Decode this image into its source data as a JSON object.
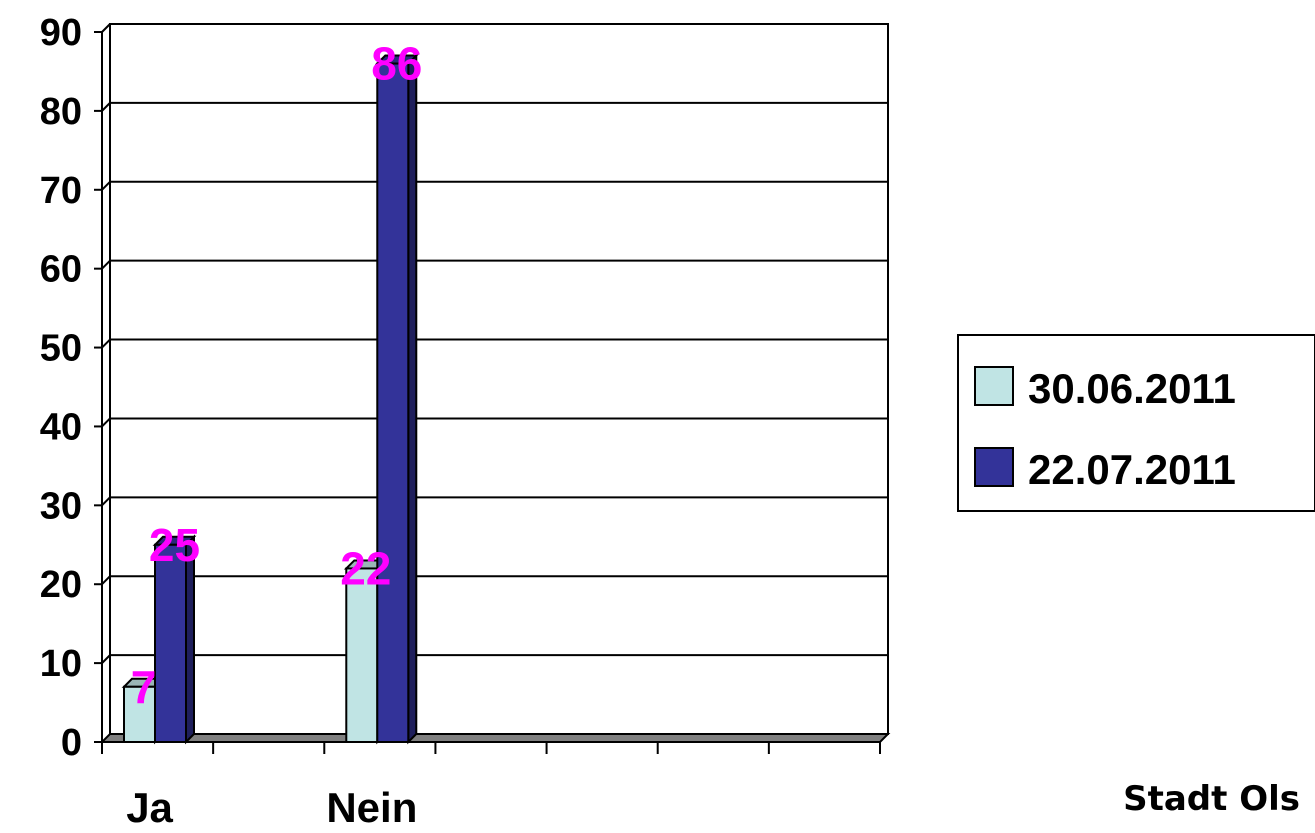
{
  "chart_data": {
    "type": "bar",
    "categories": [
      "Ja",
      "Nein"
    ],
    "series": [
      {
        "name": "30.06.2011",
        "values": [
          7,
          22
        ],
        "color": "#c0e4e4"
      },
      {
        "name": "22.07.2011",
        "values": [
          25,
          86
        ],
        "color": "#333399"
      }
    ],
    "yticks": [
      "0",
      "10",
      "20",
      "30",
      "40",
      "50",
      "60",
      "70",
      "80",
      "90"
    ],
    "ylim": [
      0,
      90
    ],
    "slot_count": 7,
    "grid": true,
    "legend": "right",
    "data_label_color": "#ff00ff"
  },
  "footer": {
    "text": "Stadt Ols"
  }
}
